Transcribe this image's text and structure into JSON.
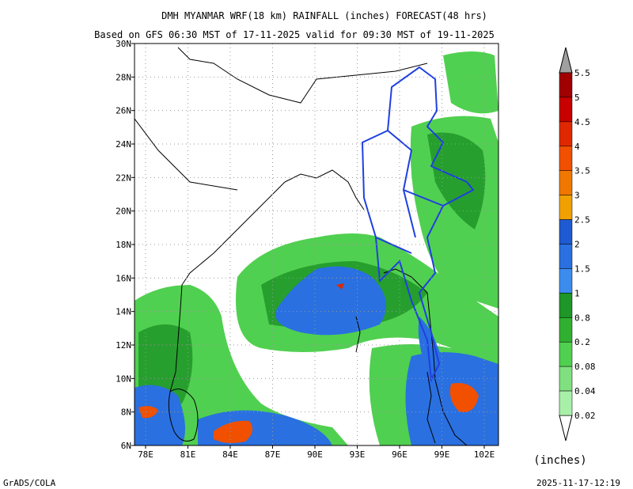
{
  "header": {
    "title": "DMH MYANMAR WRF(18 km) RAINFALL (inches) FORECAST(48 hrs)",
    "subtitle": "Based on GFS 06:30 MST of 17-11-2025 valid for 09:30 MST of 19-11-2025"
  },
  "map": {
    "lat_labels": [
      "30N",
      "28N",
      "26N",
      "24N",
      "22N",
      "20N",
      "18N",
      "16N",
      "14N",
      "12N",
      "10N",
      "8N",
      "6N"
    ],
    "lon_labels": [
      "78E",
      "81E",
      "84E",
      "87E",
      "90E",
      "93E",
      "96E",
      "99E",
      "102E"
    ]
  },
  "colorbar": {
    "labels": [
      "5.5",
      "5",
      "4.5",
      "4",
      "3.5",
      "3",
      "2.5",
      "2",
      "1.5",
      "1",
      "0.8",
      "0.2",
      "0.08",
      "0.04",
      "0.02"
    ],
    "colors": [
      "#a00000",
      "#c80000",
      "#e02800",
      "#f05000",
      "#f07800",
      "#f0a000",
      "#1e5ad2",
      "#2a70e0",
      "#3c8cf0",
      "#1e9628",
      "#30b030",
      "#50d050",
      "#80e080",
      "#a8f0a8"
    ],
    "unit": "(inches)"
  },
  "footer": {
    "left": "GrADS/COLA",
    "right": "2025-11-17-12:19"
  }
}
